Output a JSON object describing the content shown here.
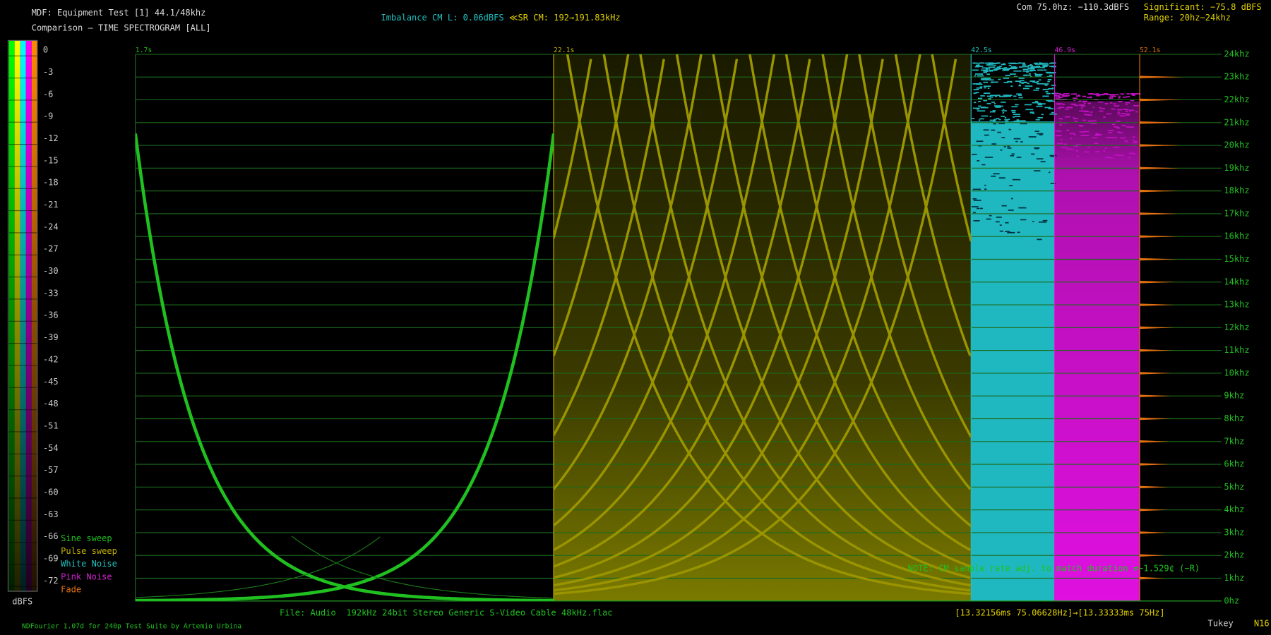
{
  "header": {
    "title": "MDF: Equipment Test [1] 44.1/48khz",
    "subtitle": "Comparison — TIME SPECTROGRAM [ALL]"
  },
  "status": {
    "imbalance": "Imbalance CM L: 0.06dBFS",
    "sample_rate": "≪SR CM: 192→191.83kHz",
    "com": "Com 75.0hz: −110.3dBFS",
    "significant": "Significant: −75.8 dBFS",
    "range": "Range: 20hz−24khz"
  },
  "scale": {
    "labels": [
      "0",
      "-3",
      "-6",
      "-9",
      "-12",
      "-15",
      "-18",
      "-21",
      "-24",
      "-27",
      "-30",
      "-33",
      "-36",
      "-39",
      "-42",
      "-45",
      "-48",
      "-51",
      "-54",
      "-57",
      "-60",
      "-63",
      "-66",
      "-69",
      "-72"
    ],
    "unit": "dBFS"
  },
  "legend": [
    "Sine sweep",
    "Pulse sweep",
    "White Noise",
    "Pink Noise",
    "Fade"
  ],
  "time_markers": [
    "1.7s",
    "22.1s",
    "42.5s",
    "46.9s",
    "52.1s"
  ],
  "frequency_labels": [
    "24khz",
    "23khz",
    "22khz",
    "21khz",
    "20khz",
    "19khz",
    "18khz",
    "17khz",
    "16khz",
    "15khz",
    "14khz",
    "13khz",
    "12khz",
    "11khz",
    "10khz",
    "9khz",
    "8khz",
    "7khz",
    "6khz",
    "5khz",
    "4khz",
    "3khz",
    "2khz",
    "1khz",
    "0hz"
  ],
  "note": "NOTE: CM sample rate adj. to match duration ≠−1.529¢ (−R)",
  "footer": {
    "file": "File: Audio  192kHz 24bit Stereo Generic S-Video Cable 48kHz.flac",
    "timing": "[13.32156ms 75.06628Hz]→[13.33333ms 75Hz]",
    "credit": "NDFourier 1.07d for 240p Test Suite by Artemio Urbina",
    "window": "Tukey",
    "mode": "N16"
  }
}
